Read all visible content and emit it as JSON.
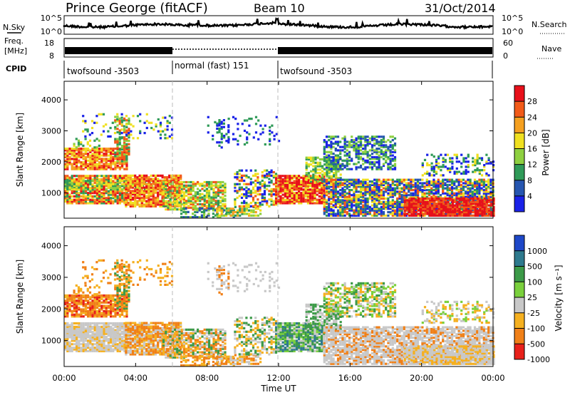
{
  "header": {
    "station": "Prince George (fitACF)",
    "beam": "Beam 10",
    "date": "31/Oct/2014"
  },
  "noise_panel": {
    "left_label": "N.Sky",
    "right_label": "N.Search",
    "ticks_left": [
      "10^5",
      "10^0"
    ],
    "ticks_right": [
      "10^5",
      "10^0"
    ]
  },
  "freq_panel": {
    "left_label_1": "Freq.",
    "left_label_2": "[MHz]",
    "ticks_left": [
      "18",
      "8"
    ],
    "right_label": "Nave",
    "ticks_right": [
      "60",
      "0"
    ]
  },
  "cpid": {
    "label": "CPID",
    "segments": [
      {
        "name": "twofsound -3503",
        "start_h": 0,
        "end_h": 6
      },
      {
        "name": "normal (fast) 151",
        "start_h": 6,
        "end_h": 12
      },
      {
        "name": "twofsound -3503",
        "start_h": 12,
        "end_h": 24
      }
    ]
  },
  "chart_data": [
    {
      "type": "heatmap",
      "name": "Power",
      "ylabel": "Slant Range [km]",
      "xlim_hours": [
        0,
        24
      ],
      "ylim": [
        180,
        4600
      ],
      "yticks": [
        1000,
        2000,
        3000,
        4000
      ],
      "colorbar": {
        "label": "Power [dB]",
        "ticks": [
          "28",
          "24",
          "20",
          "16",
          "12",
          "8",
          "4"
        ],
        "colors": [
          "#e8101a",
          "#f25a18",
          "#f5a020",
          "#f0e020",
          "#8ed040",
          "#2f9a58",
          "#2656b0",
          "#1a22e8"
        ]
      }
    },
    {
      "type": "heatmap",
      "name": "Velocity",
      "ylabel": "Slant Range [km]",
      "xlim_hours": [
        0,
        24
      ],
      "ylim": [
        180,
        4600
      ],
      "yticks": [
        1000,
        2000,
        3000,
        4000
      ],
      "colorbar": {
        "label": "Velocity [m s⁻¹]",
        "ticks": [
          "1000",
          "500",
          "100",
          "25",
          "-25",
          "-100",
          "-500",
          "-1000"
        ],
        "colors": [
          "#1e48c8",
          "#2e7a8e",
          "#3c9a48",
          "#7ad03c",
          "#c8c8c8",
          "#f5b020",
          "#f08018",
          "#e8201a"
        ]
      }
    }
  ],
  "x_axis": {
    "label": "Time UT",
    "ticks": [
      "00:00",
      "04:00",
      "08:00",
      "12:00",
      "16:00",
      "20:00",
      "00:00"
    ]
  }
}
